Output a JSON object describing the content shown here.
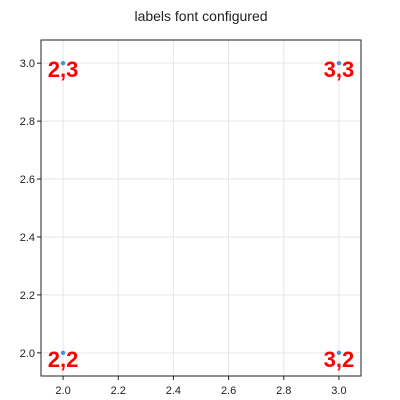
{
  "chart_data": {
    "type": "scatter",
    "title": "labels font configured",
    "xlabel": "",
    "ylabel": "",
    "xlim": [
      1.92,
      3.08
    ],
    "ylim": [
      1.92,
      3.08
    ],
    "x_ticks": [
      2.0,
      2.2,
      2.4,
      2.6,
      2.8,
      3.0
    ],
    "y_ticks": [
      2.0,
      2.2,
      2.4,
      2.6,
      2.8,
      3.0
    ],
    "x_tick_labels": [
      "2.0",
      "2.2",
      "2.4",
      "2.6",
      "2.8",
      "3.0"
    ],
    "y_tick_labels": [
      "2.0",
      "2.2",
      "2.4",
      "2.6",
      "2.8",
      "3.0"
    ],
    "grid": true,
    "points": [
      {
        "x": 2,
        "y": 3,
        "label": "2,3"
      },
      {
        "x": 3,
        "y": 3,
        "label": "3,3"
      },
      {
        "x": 2,
        "y": 2,
        "label": "2,2"
      },
      {
        "x": 3,
        "y": 2,
        "label": "3,2"
      }
    ],
    "colors": {
      "point": "#4a90d9",
      "label": "#ff0000",
      "grid": "#e6e6e6",
      "axis": "#222222"
    }
  }
}
